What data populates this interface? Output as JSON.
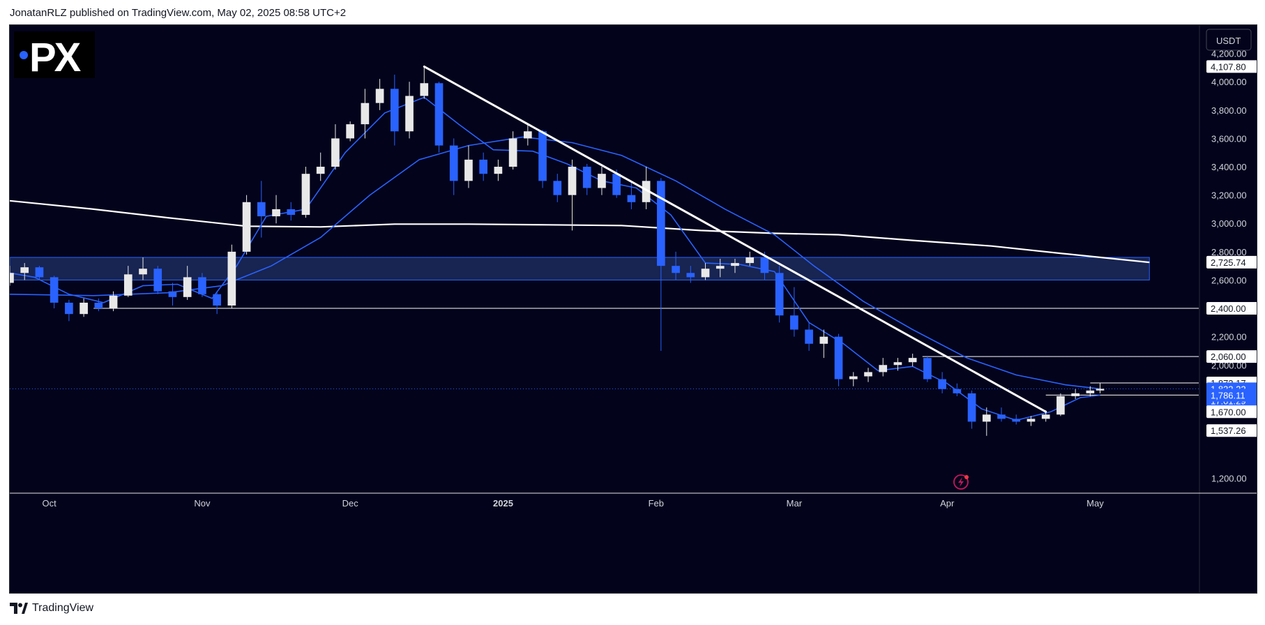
{
  "header": {
    "text": "JonatanRLZ published on TradingView.com, May 02, 2025 08:58 UTC+2"
  },
  "footer": {
    "brand": "TradingView"
  },
  "logo": {
    "text": "PX",
    "bg": "#000000",
    "dot_color": "#2962ff"
  },
  "colors": {
    "background": "#03031c",
    "up_candle": "#e8e8e8",
    "down_candle": "#2962ff",
    "ma_fast": "#2962ff",
    "ma_slow": "#2962ff",
    "ma_200": "#ffffff",
    "zone_fill": "#1c2a5a",
    "zone_border": "#2962ff",
    "level_line": "#ffffff",
    "price_label_bg": "#2962ff"
  },
  "chart_data": {
    "type": "line",
    "title": "",
    "currency": "USDT",
    "ylim": [
      1100,
      4400
    ],
    "y_ticks": [
      {
        "value": 4200,
        "label": "4,200.00"
      },
      {
        "value": 4000,
        "label": "4,000.00"
      },
      {
        "value": 3800,
        "label": "3,800.00"
      },
      {
        "value": 3600,
        "label": "3,600.00"
      },
      {
        "value": 3400,
        "label": "3,400.00"
      },
      {
        "value": 3200,
        "label": "3,200.00"
      },
      {
        "value": 3000,
        "label": "3,000.00"
      },
      {
        "value": 2800,
        "label": "2,800.00"
      },
      {
        "value": 2600,
        "label": "2,600.00"
      },
      {
        "value": 2200,
        "label": "2,200.00"
      },
      {
        "value": 2000,
        "label": "2,000.00"
      },
      {
        "value": 1200,
        "label": "1,200.00"
      }
    ],
    "price_labels": [
      {
        "value": 4107.8,
        "label": "4,107.80",
        "style": "outline"
      },
      {
        "value": 2725.74,
        "label": "2,725.74",
        "style": "outline"
      },
      {
        "value": 2400.0,
        "label": "2,400.00",
        "style": "outline"
      },
      {
        "value": 2060.0,
        "label": "2,060.00",
        "style": "outline"
      },
      {
        "value": 1873.17,
        "label": "1,873.17",
        "style": "outline"
      },
      {
        "value": 1832.22,
        "label": "1,832.22",
        "sub": "17:01:29",
        "style": "filled"
      },
      {
        "value": 1787.42,
        "label": "1,787.42",
        "style": "filled"
      },
      {
        "value": 1786.11,
        "label": "1,786.11",
        "style": "filled"
      },
      {
        "value": 1670.0,
        "label": "1,670.00",
        "style": "outline"
      },
      {
        "value": 1537.26,
        "label": "1,537.26",
        "style": "outline"
      }
    ],
    "x_ticks": [
      {
        "date": "2024-10-01",
        "label": "Oct",
        "bold": false
      },
      {
        "date": "2024-11-01",
        "label": "Nov",
        "bold": false
      },
      {
        "date": "2024-12-01",
        "label": "Dec",
        "bold": false
      },
      {
        "date": "2025-01-01",
        "label": "2025",
        "bold": true
      },
      {
        "date": "2025-02-01",
        "label": "Feb",
        "bold": false
      },
      {
        "date": "2025-03-01",
        "label": "Mar",
        "bold": false
      },
      {
        "date": "2025-04-01",
        "label": "Apr",
        "bold": false
      },
      {
        "date": "2025-05-01",
        "label": "May",
        "bold": false
      }
    ],
    "x_range": [
      "2024-09-23",
      "2025-05-22"
    ],
    "zone": {
      "from_date": "2024-09-23",
      "to_date": "2025-05-12",
      "low": 2600,
      "high": 2760
    },
    "horizontal_levels": [
      {
        "value": 2400,
        "from_date": "2024-10-10",
        "to_date": "2025-05-22"
      },
      {
        "value": 2060,
        "from_date": "2025-03-27",
        "to_date": "2025-05-22"
      },
      {
        "value": 1873.17,
        "from_date": "2025-04-30",
        "to_date": "2025-05-22"
      },
      {
        "value": 1787.42,
        "from_date": "2025-04-21",
        "to_date": "2025-05-22"
      }
    ],
    "last_price": 1832.22,
    "trendline": {
      "from": {
        "date": "2024-12-16",
        "value": 4107
      },
      "to": {
        "date": "2025-04-21",
        "value": 1670
      }
    },
    "series": [
      {
        "name": "",
        "kind": "ma_200",
        "points": [
          [
            "2024-09-23",
            3160
          ],
          [
            "2024-10-10",
            3100
          ],
          [
            "2024-10-25",
            3040
          ],
          [
            "2024-11-10",
            2980
          ],
          [
            "2024-11-25",
            2975
          ],
          [
            "2024-12-10",
            2995
          ],
          [
            "2024-12-25",
            2995
          ],
          [
            "2025-01-10",
            2990
          ],
          [
            "2025-01-25",
            2985
          ],
          [
            "2025-02-10",
            2950
          ],
          [
            "2025-02-25",
            2930
          ],
          [
            "2025-03-10",
            2920
          ],
          [
            "2025-03-25",
            2880
          ],
          [
            "2025-04-10",
            2840
          ],
          [
            "2025-04-25",
            2785
          ],
          [
            "2025-05-12",
            2725
          ]
        ]
      },
      {
        "name": "",
        "kind": "ma_slow",
        "points": [
          [
            "2024-09-23",
            2500
          ],
          [
            "2024-10-10",
            2490
          ],
          [
            "2024-10-25",
            2510
          ],
          [
            "2024-11-05",
            2560
          ],
          [
            "2024-11-15",
            2700
          ],
          [
            "2024-11-25",
            2900
          ],
          [
            "2024-12-05",
            3200
          ],
          [
            "2024-12-15",
            3450
          ],
          [
            "2024-12-25",
            3550
          ],
          [
            "2025-01-05",
            3610
          ],
          [
            "2025-01-15",
            3570
          ],
          [
            "2025-01-25",
            3480
          ],
          [
            "2025-02-05",
            3300
          ],
          [
            "2025-02-15",
            3100
          ],
          [
            "2025-02-25",
            2920
          ],
          [
            "2025-03-05",
            2700
          ],
          [
            "2025-03-15",
            2450
          ],
          [
            "2025-03-25",
            2250
          ],
          [
            "2025-04-05",
            2050
          ],
          [
            "2025-04-15",
            1930
          ],
          [
            "2025-04-25",
            1860
          ],
          [
            "2025-05-02",
            1832
          ]
        ]
      },
      {
        "name": "",
        "kind": "ma_fast",
        "points": [
          [
            "2024-09-23",
            2650
          ],
          [
            "2024-09-28",
            2620
          ],
          [
            "2024-10-05",
            2500
          ],
          [
            "2024-10-12",
            2440
          ],
          [
            "2024-10-20",
            2560
          ],
          [
            "2024-10-27",
            2570
          ],
          [
            "2024-11-03",
            2470
          ],
          [
            "2024-11-08",
            2700
          ],
          [
            "2024-11-14",
            3050
          ],
          [
            "2024-11-22",
            3100
          ],
          [
            "2024-11-30",
            3500
          ],
          [
            "2024-12-08",
            3780
          ],
          [
            "2024-12-16",
            3890
          ],
          [
            "2024-12-23",
            3700
          ],
          [
            "2024-12-30",
            3520
          ],
          [
            "2025-01-07",
            3510
          ],
          [
            "2025-01-14",
            3420
          ],
          [
            "2025-01-21",
            3300
          ],
          [
            "2025-01-28",
            3250
          ],
          [
            "2025-02-04",
            3060
          ],
          [
            "2025-02-11",
            2720
          ],
          [
            "2025-02-18",
            2710
          ],
          [
            "2025-02-25",
            2660
          ],
          [
            "2025-03-04",
            2300
          ],
          [
            "2025-03-11",
            2150
          ],
          [
            "2025-03-18",
            1960
          ],
          [
            "2025-03-25",
            1990
          ],
          [
            "2025-04-01",
            1870
          ],
          [
            "2025-04-08",
            1690
          ],
          [
            "2025-04-15",
            1610
          ],
          [
            "2025-04-22",
            1670
          ],
          [
            "2025-04-28",
            1770
          ],
          [
            "2025-05-02",
            1787
          ]
        ]
      }
    ],
    "candles": [
      [
        "2024-09-23",
        2580,
        2700,
        2560,
        2650
      ],
      [
        "2024-09-26",
        2650,
        2720,
        2600,
        2690
      ],
      [
        "2024-09-29",
        2690,
        2700,
        2600,
        2620
      ],
      [
        "2024-10-02",
        2620,
        2630,
        2400,
        2440
      ],
      [
        "2024-10-05",
        2440,
        2460,
        2310,
        2360
      ],
      [
        "2024-10-08",
        2360,
        2470,
        2340,
        2440
      ],
      [
        "2024-10-11",
        2440,
        2470,
        2380,
        2400
      ],
      [
        "2024-10-14",
        2400,
        2520,
        2380,
        2490
      ],
      [
        "2024-10-17",
        2490,
        2700,
        2480,
        2640
      ],
      [
        "2024-10-20",
        2640,
        2760,
        2600,
        2680
      ],
      [
        "2024-10-23",
        2680,
        2700,
        2500,
        2520
      ],
      [
        "2024-10-26",
        2520,
        2580,
        2420,
        2480
      ],
      [
        "2024-10-29",
        2480,
        2700,
        2460,
        2620
      ],
      [
        "2024-11-01",
        2620,
        2650,
        2480,
        2500
      ],
      [
        "2024-11-04",
        2500,
        2520,
        2360,
        2420
      ],
      [
        "2024-11-07",
        2420,
        2850,
        2400,
        2800
      ],
      [
        "2024-11-10",
        2800,
        3200,
        2780,
        3150
      ],
      [
        "2024-11-13",
        3150,
        3300,
        2900,
        3050
      ],
      [
        "2024-11-16",
        3050,
        3200,
        3000,
        3100
      ],
      [
        "2024-11-19",
        3100,
        3150,
        3020,
        3060
      ],
      [
        "2024-11-22",
        3060,
        3400,
        3040,
        3350
      ],
      [
        "2024-11-25",
        3350,
        3500,
        3300,
        3400
      ],
      [
        "2024-11-28",
        3400,
        3700,
        3380,
        3600
      ],
      [
        "2024-12-01",
        3600,
        3720,
        3580,
        3700
      ],
      [
        "2024-12-04",
        3700,
        3950,
        3600,
        3850
      ],
      [
        "2024-12-07",
        3850,
        4020,
        3800,
        3950
      ],
      [
        "2024-12-10",
        3950,
        4050,
        3550,
        3650
      ],
      [
        "2024-12-13",
        3650,
        4000,
        3600,
        3900
      ],
      [
        "2024-12-16",
        3900,
        4107,
        3880,
        3990
      ],
      [
        "2024-12-19",
        3990,
        4000,
        3500,
        3550
      ],
      [
        "2024-12-22",
        3550,
        3600,
        3200,
        3300
      ],
      [
        "2024-12-25",
        3300,
        3550,
        3250,
        3450
      ],
      [
        "2024-12-28",
        3450,
        3500,
        3300,
        3350
      ],
      [
        "2024-12-31",
        3350,
        3450,
        3300,
        3400
      ],
      [
        "2025-01-03",
        3400,
        3650,
        3380,
        3600
      ],
      [
        "2025-01-06",
        3600,
        3700,
        3550,
        3650
      ],
      [
        "2025-01-09",
        3650,
        3660,
        3250,
        3300
      ],
      [
        "2025-01-12",
        3300,
        3350,
        3150,
        3200
      ],
      [
        "2025-01-15",
        3200,
        3450,
        2950,
        3400
      ],
      [
        "2025-01-18",
        3400,
        3420,
        3200,
        3250
      ],
      [
        "2025-01-21",
        3250,
        3400,
        3200,
        3350
      ],
      [
        "2025-01-24",
        3350,
        3380,
        3180,
        3200
      ],
      [
        "2025-01-27",
        3200,
        3300,
        3100,
        3150
      ],
      [
        "2025-01-30",
        3150,
        3400,
        3100,
        3300
      ],
      [
        "2025-02-02",
        3300,
        3320,
        2100,
        2700
      ],
      [
        "2025-02-05",
        2700,
        2800,
        2600,
        2650
      ],
      [
        "2025-02-08",
        2650,
        2700,
        2580,
        2620
      ],
      [
        "2025-02-11",
        2620,
        2720,
        2600,
        2680
      ],
      [
        "2025-02-14",
        2680,
        2750,
        2620,
        2700
      ],
      [
        "2025-02-17",
        2700,
        2750,
        2650,
        2720
      ],
      [
        "2025-02-20",
        2720,
        2800,
        2700,
        2760
      ],
      [
        "2025-02-23",
        2760,
        2800,
        2600,
        2650
      ],
      [
        "2025-02-26",
        2650,
        2700,
        2300,
        2350
      ],
      [
        "2025-03-01",
        2350,
        2550,
        2200,
        2250
      ],
      [
        "2025-03-04",
        2250,
        2300,
        2100,
        2150
      ],
      [
        "2025-03-07",
        2150,
        2250,
        2050,
        2200
      ],
      [
        "2025-03-10",
        2200,
        2220,
        1850,
        1900
      ],
      [
        "2025-03-13",
        1900,
        1950,
        1850,
        1920
      ],
      [
        "2025-03-16",
        1920,
        1980,
        1880,
        1950
      ],
      [
        "2025-03-19",
        1950,
        2050,
        1920,
        2000
      ],
      [
        "2025-03-22",
        2000,
        2050,
        1960,
        2020
      ],
      [
        "2025-03-25",
        2020,
        2080,
        1990,
        2050
      ],
      [
        "2025-03-28",
        2050,
        2060,
        1880,
        1900
      ],
      [
        "2025-03-31",
        1900,
        1950,
        1800,
        1830
      ],
      [
        "2025-04-03",
        1830,
        1870,
        1780,
        1800
      ],
      [
        "2025-04-06",
        1800,
        1820,
        1550,
        1600
      ],
      [
        "2025-04-09",
        1600,
        1700,
        1500,
        1650
      ],
      [
        "2025-04-12",
        1650,
        1700,
        1600,
        1620
      ],
      [
        "2025-04-15",
        1620,
        1650,
        1580,
        1600
      ],
      [
        "2025-04-18",
        1600,
        1640,
        1570,
        1620
      ],
      [
        "2025-04-21",
        1620,
        1680,
        1600,
        1650
      ],
      [
        "2025-04-24",
        1650,
        1800,
        1640,
        1780
      ],
      [
        "2025-04-27",
        1780,
        1830,
        1760,
        1800
      ],
      [
        "2025-04-30",
        1800,
        1850,
        1780,
        1820
      ],
      [
        "2025-05-02",
        1820,
        1873,
        1800,
        1832
      ]
    ]
  }
}
